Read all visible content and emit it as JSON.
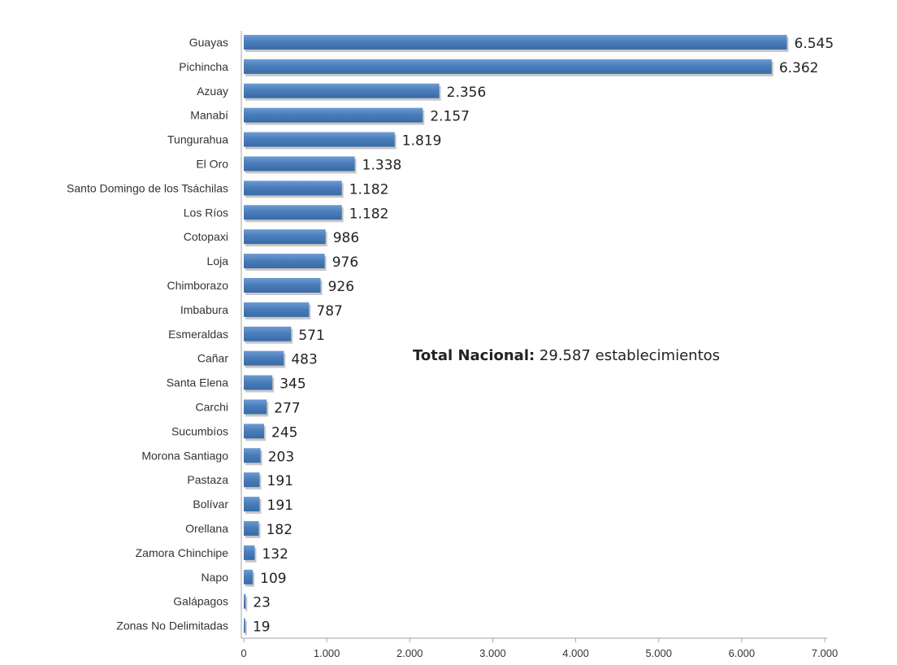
{
  "chart_data": {
    "type": "bar",
    "orientation": "horizontal",
    "title": "",
    "xlabel": "",
    "ylabel": "",
    "categories": [
      "Guayas",
      "Pichincha",
      "Azuay",
      "Manabí",
      "Tungurahua",
      "El Oro",
      "Santo Domingo de los Tsáchilas",
      "Los Ríos",
      "Cotopaxi",
      "Loja",
      "Chimborazo",
      "Imbabura",
      "Esmeraldas",
      "Cañar",
      "Santa Elena",
      "Carchi",
      "Sucumbíos",
      "Morona Santiago",
      "Pastaza",
      "Bolívar",
      "Orellana",
      "Zamora Chinchipe",
      "Napo",
      "Galápagos",
      "Zonas No Delimitadas"
    ],
    "values": [
      6545,
      6362,
      2356,
      2157,
      1819,
      1338,
      1182,
      1182,
      986,
      976,
      926,
      787,
      571,
      483,
      345,
      277,
      245,
      203,
      191,
      191,
      182,
      132,
      109,
      23,
      19
    ],
    "value_labels": [
      "6.545",
      "6.362",
      "2.356",
      "2.157",
      "1.819",
      "1.338",
      "1.182",
      "1.182",
      "986",
      "976",
      "926",
      "787",
      "571",
      "483",
      "345",
      "277",
      "245",
      "203",
      "191",
      "191",
      "182",
      "132",
      "109",
      "23",
      "19"
    ],
    "xlim": [
      0,
      7000
    ],
    "x_ticks": [
      0,
      1000,
      2000,
      3000,
      4000,
      5000,
      6000,
      7000
    ],
    "x_tick_labels": [
      "0",
      "1.000",
      "2.000",
      "3.000",
      "4.000",
      "5.000",
      "6.000",
      "7.000"
    ],
    "grid": false,
    "legend": "none",
    "bar_color": "#4a7ebb",
    "annotation": {
      "bold_text": "Total  Nacional:",
      "text": " 29.587 establecimientos"
    }
  }
}
